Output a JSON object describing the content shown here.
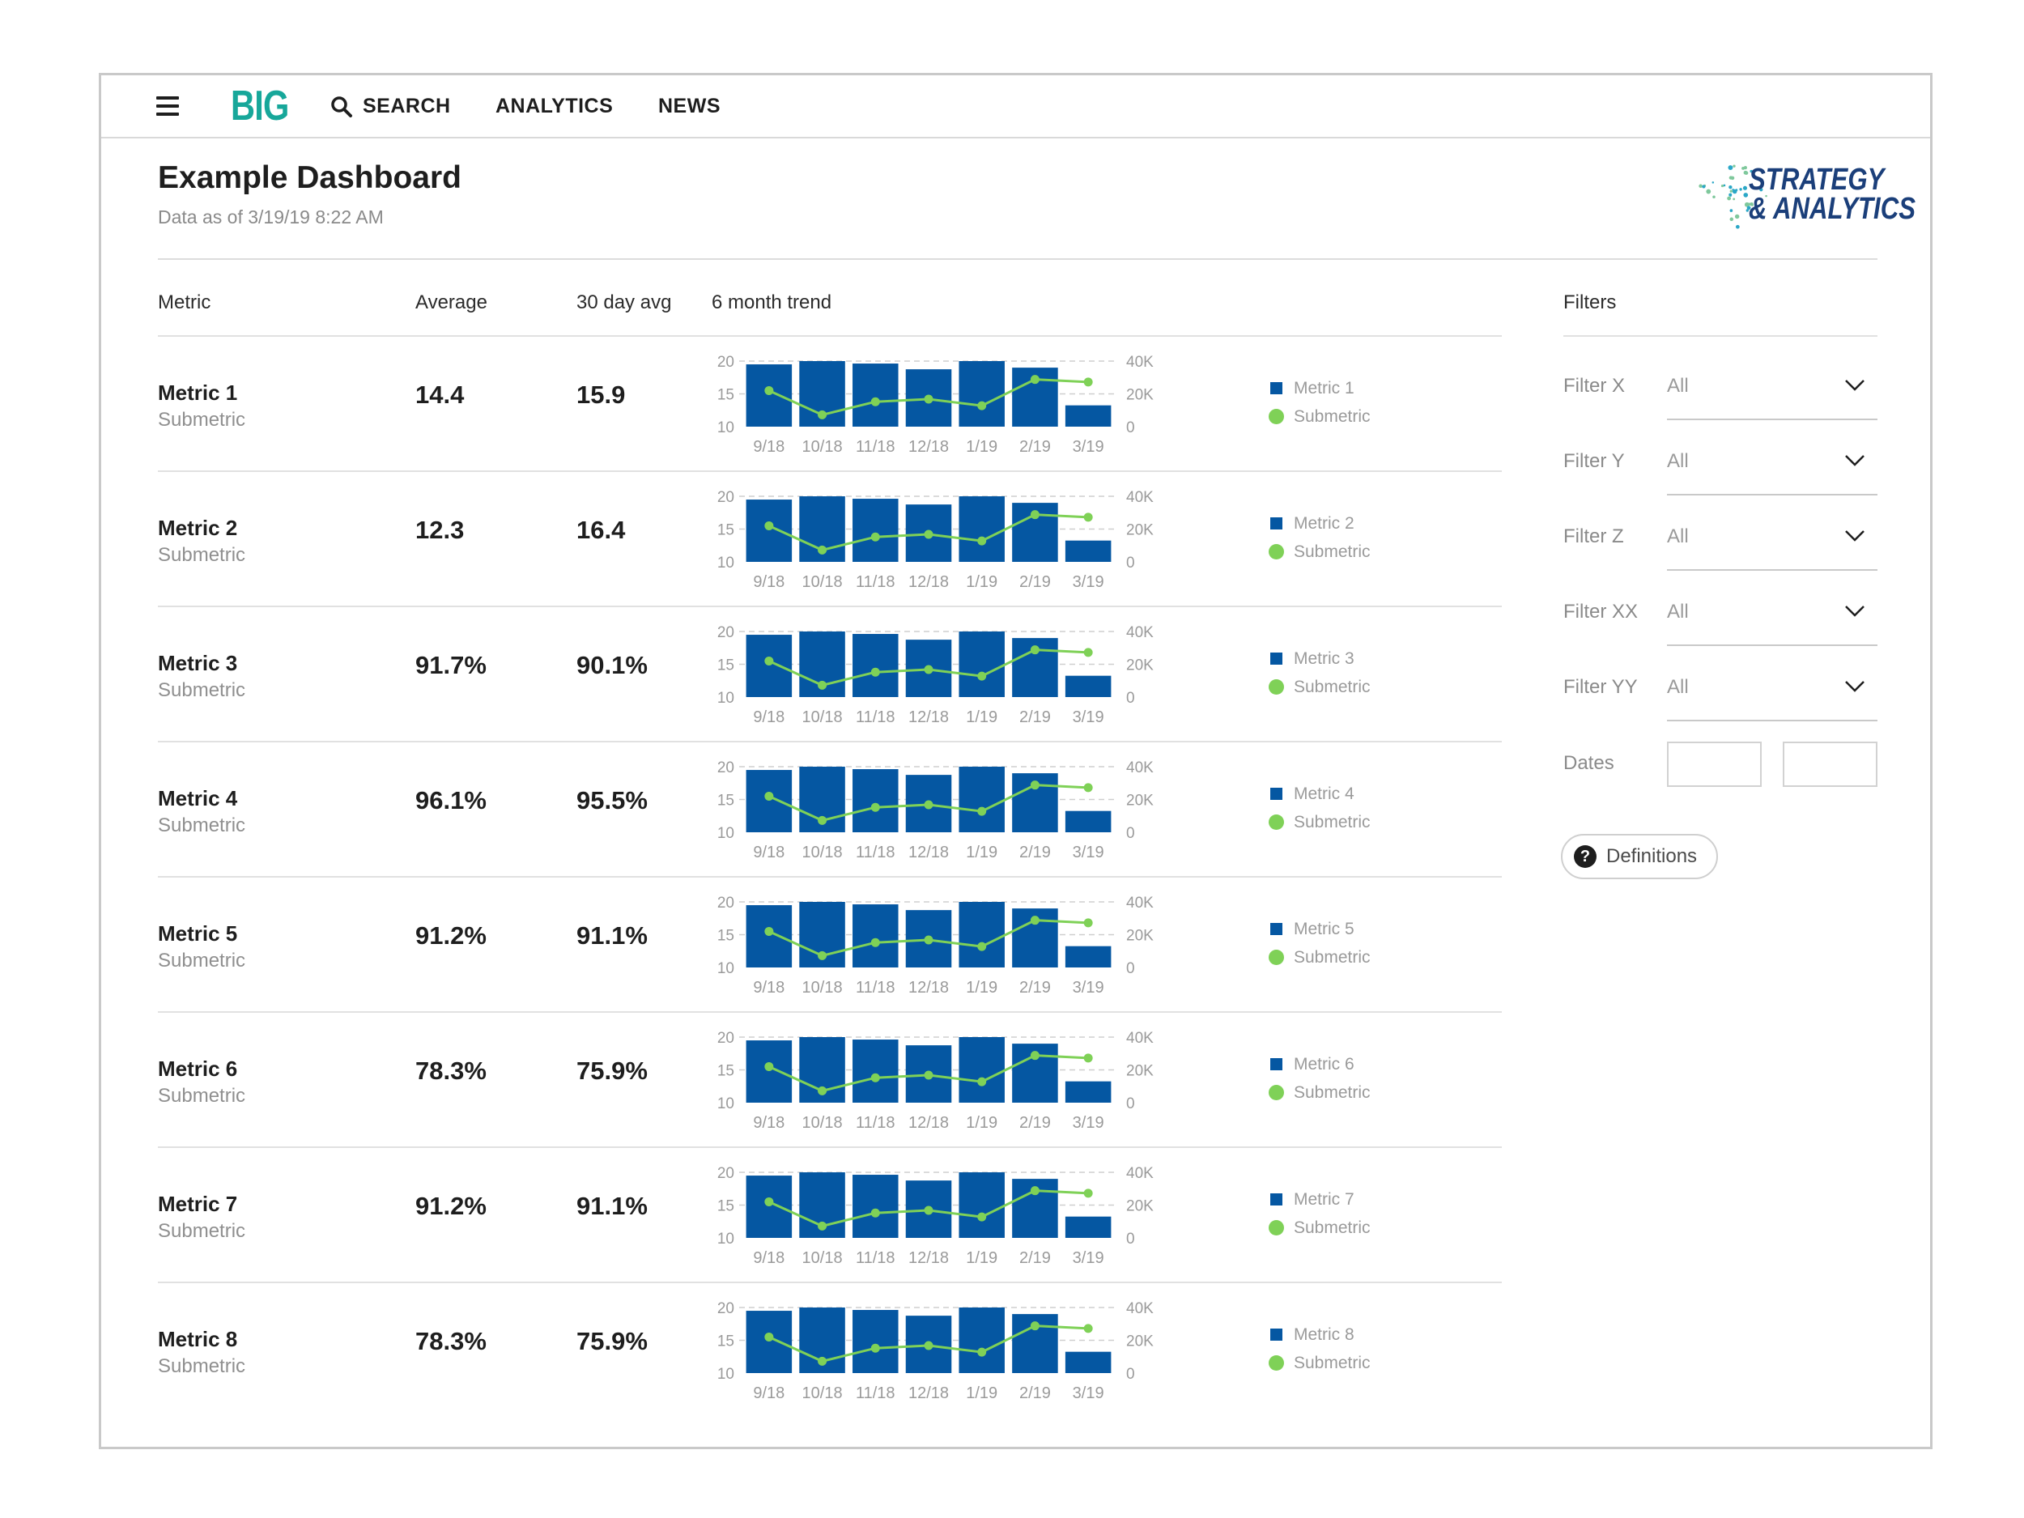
{
  "nav": {
    "brand": "BIG",
    "search_label": "SEARCH",
    "analytics_label": "ANALYTICS",
    "news_label": "NEWS"
  },
  "header": {
    "title": "Example Dashboard",
    "subtitle": "Data as of 3/19/19 8:22 AM",
    "logo_line1": "STRATEGY",
    "logo_line2": "& ANALYTICS"
  },
  "table": {
    "columns": [
      "Metric",
      "Average",
      "30 day avg",
      "6 month trend"
    ]
  },
  "colors": {
    "bar": "#0557a2",
    "line": "#7fd157",
    "brand": "#17a79a"
  },
  "chart_data": [
    {
      "type": "bar",
      "categories": [
        "9/18",
        "10/18",
        "11/18",
        "12/18",
        "1/19",
        "2/19",
        "3/19"
      ],
      "left_ticks": [
        "20",
        "15",
        "10"
      ],
      "right_ticks": [
        "40K",
        "20K",
        "0"
      ],
      "ylim": [
        10,
        20
      ],
      "y2lim": [
        0,
        40000
      ],
      "series": [
        {
          "name": "Metric 1",
          "values": [
            38000,
            40000,
            38500,
            35000,
            40000,
            36000,
            13000
          ]
        },
        {
          "name": "Submetric",
          "type": "line",
          "values": [
            15.5,
            11.8,
            13.8,
            14.2,
            13.2,
            17.2,
            16.8
          ]
        }
      ]
    },
    {
      "type": "bar",
      "categories": [
        "9/18",
        "10/18",
        "11/18",
        "12/18",
        "1/19",
        "2/19",
        "3/19"
      ],
      "left_ticks": [
        "20",
        "15",
        "10"
      ],
      "right_ticks": [
        "40K",
        "20K",
        "0"
      ],
      "ylim": [
        10,
        20
      ],
      "y2lim": [
        0,
        40000
      ],
      "series": [
        {
          "name": "Metric 2",
          "values": [
            38000,
            40000,
            38500,
            35000,
            40000,
            36000,
            13000
          ]
        },
        {
          "name": "Submetric",
          "type": "line",
          "values": [
            15.5,
            11.8,
            13.8,
            14.2,
            13.2,
            17.2,
            16.8
          ]
        }
      ]
    },
    {
      "type": "bar",
      "categories": [
        "9/18",
        "10/18",
        "11/18",
        "12/18",
        "1/19",
        "2/19",
        "3/19"
      ],
      "left_ticks": [
        "20",
        "15",
        "10"
      ],
      "right_ticks": [
        "40K",
        "20K",
        "0"
      ],
      "ylim": [
        10,
        20
      ],
      "y2lim": [
        0,
        40000
      ],
      "series": [
        {
          "name": "Metric 3",
          "values": [
            38000,
            40000,
            38500,
            35000,
            40000,
            36000,
            13000
          ]
        },
        {
          "name": "Submetric",
          "type": "line",
          "values": [
            15.5,
            11.8,
            13.8,
            14.2,
            13.2,
            17.2,
            16.8
          ]
        }
      ]
    },
    {
      "type": "bar",
      "categories": [
        "9/18",
        "10/18",
        "11/18",
        "12/18",
        "1/19",
        "2/19",
        "3/19"
      ],
      "left_ticks": [
        "20",
        "15",
        "10"
      ],
      "right_ticks": [
        "40K",
        "20K",
        "0"
      ],
      "ylim": [
        10,
        20
      ],
      "y2lim": [
        0,
        40000
      ],
      "series": [
        {
          "name": "Metric 4",
          "values": [
            38000,
            40000,
            38500,
            35000,
            40000,
            36000,
            13000
          ]
        },
        {
          "name": "Submetric",
          "type": "line",
          "values": [
            15.5,
            11.8,
            13.8,
            14.2,
            13.2,
            17.2,
            16.8
          ]
        }
      ]
    },
    {
      "type": "bar",
      "categories": [
        "9/18",
        "10/18",
        "11/18",
        "12/18",
        "1/19",
        "2/19",
        "3/19"
      ],
      "left_ticks": [
        "20",
        "15",
        "10"
      ],
      "right_ticks": [
        "40K",
        "20K",
        "0"
      ],
      "ylim": [
        10,
        20
      ],
      "y2lim": [
        0,
        40000
      ],
      "series": [
        {
          "name": "Metric 5",
          "values": [
            38000,
            40000,
            38500,
            35000,
            40000,
            36000,
            13000
          ]
        },
        {
          "name": "Submetric",
          "type": "line",
          "values": [
            15.5,
            11.8,
            13.8,
            14.2,
            13.2,
            17.2,
            16.8
          ]
        }
      ]
    },
    {
      "type": "bar",
      "categories": [
        "9/18",
        "10/18",
        "11/18",
        "12/18",
        "1/19",
        "2/19",
        "3/19"
      ],
      "left_ticks": [
        "20",
        "15",
        "10"
      ],
      "right_ticks": [
        "40K",
        "20K",
        "0"
      ],
      "ylim": [
        10,
        20
      ],
      "y2lim": [
        0,
        40000
      ],
      "series": [
        {
          "name": "Metric 6",
          "values": [
            38000,
            40000,
            38500,
            35000,
            40000,
            36000,
            13000
          ]
        },
        {
          "name": "Submetric",
          "type": "line",
          "values": [
            15.5,
            11.8,
            13.8,
            14.2,
            13.2,
            17.2,
            16.8
          ]
        }
      ]
    },
    {
      "type": "bar",
      "categories": [
        "9/18",
        "10/18",
        "11/18",
        "12/18",
        "1/19",
        "2/19",
        "3/19"
      ],
      "left_ticks": [
        "20",
        "15",
        "10"
      ],
      "right_ticks": [
        "40K",
        "20K",
        "0"
      ],
      "ylim": [
        10,
        20
      ],
      "y2lim": [
        0,
        40000
      ],
      "series": [
        {
          "name": "Metric 7",
          "values": [
            38000,
            40000,
            38500,
            35000,
            40000,
            36000,
            13000
          ]
        },
        {
          "name": "Submetric",
          "type": "line",
          "values": [
            15.5,
            11.8,
            13.8,
            14.2,
            13.2,
            17.2,
            16.8
          ]
        }
      ]
    },
    {
      "type": "bar",
      "categories": [
        "9/18",
        "10/18",
        "11/18",
        "12/18",
        "1/19",
        "2/19",
        "3/19"
      ],
      "left_ticks": [
        "20",
        "15",
        "10"
      ],
      "right_ticks": [
        "40K",
        "20K",
        "0"
      ],
      "ylim": [
        10,
        20
      ],
      "y2lim": [
        0,
        40000
      ],
      "series": [
        {
          "name": "Metric 8",
          "values": [
            38000,
            40000,
            38500,
            35000,
            40000,
            36000,
            13000
          ]
        },
        {
          "name": "Submetric",
          "type": "line",
          "values": [
            15.5,
            11.8,
            13.8,
            14.2,
            13.2,
            17.2,
            16.8
          ]
        }
      ]
    }
  ],
  "metrics": [
    {
      "name": "Metric 1",
      "sub": "Submetric",
      "average": "14.4",
      "avg30": "15.9",
      "legend_bar": "Metric 1",
      "legend_line": "Submetric"
    },
    {
      "name": "Metric 2",
      "sub": "Submetric",
      "average": "12.3",
      "avg30": "16.4",
      "legend_bar": "Metric 2",
      "legend_line": "Submetric"
    },
    {
      "name": "Metric 3",
      "sub": "Submetric",
      "average": "91.7%",
      "avg30": "90.1%",
      "legend_bar": "Metric 3",
      "legend_line": "Submetric"
    },
    {
      "name": "Metric 4",
      "sub": "Submetric",
      "average": "96.1%",
      "avg30": "95.5%",
      "legend_bar": "Metric 4",
      "legend_line": "Submetric"
    },
    {
      "name": "Metric 5",
      "sub": "Submetric",
      "average": "91.2%",
      "avg30": "91.1%",
      "legend_bar": "Metric 5",
      "legend_line": "Submetric"
    },
    {
      "name": "Metric 6",
      "sub": "Submetric",
      "average": "78.3%",
      "avg30": "75.9%",
      "legend_bar": "Metric 6",
      "legend_line": "Submetric"
    },
    {
      "name": "Metric 7",
      "sub": "Submetric",
      "average": "91.2%",
      "avg30": "91.1%",
      "legend_bar": "Metric 7",
      "legend_line": "Submetric"
    },
    {
      "name": "Metric 8",
      "sub": "Submetric",
      "average": "78.3%",
      "avg30": "75.9%",
      "legend_bar": "Metric 8",
      "legend_line": "Submetric"
    }
  ],
  "filters": {
    "heading": "Filters",
    "items": [
      {
        "label": "Filter X",
        "value": "All"
      },
      {
        "label": "Filter Y",
        "value": "All"
      },
      {
        "label": "Filter Z",
        "value": "All"
      },
      {
        "label": "Filter XX",
        "value": "All"
      },
      {
        "label": "Filter YY",
        "value": "All"
      }
    ],
    "dates_label": "Dates",
    "date_start": "",
    "date_end": "",
    "definitions_label": "Definitions"
  }
}
